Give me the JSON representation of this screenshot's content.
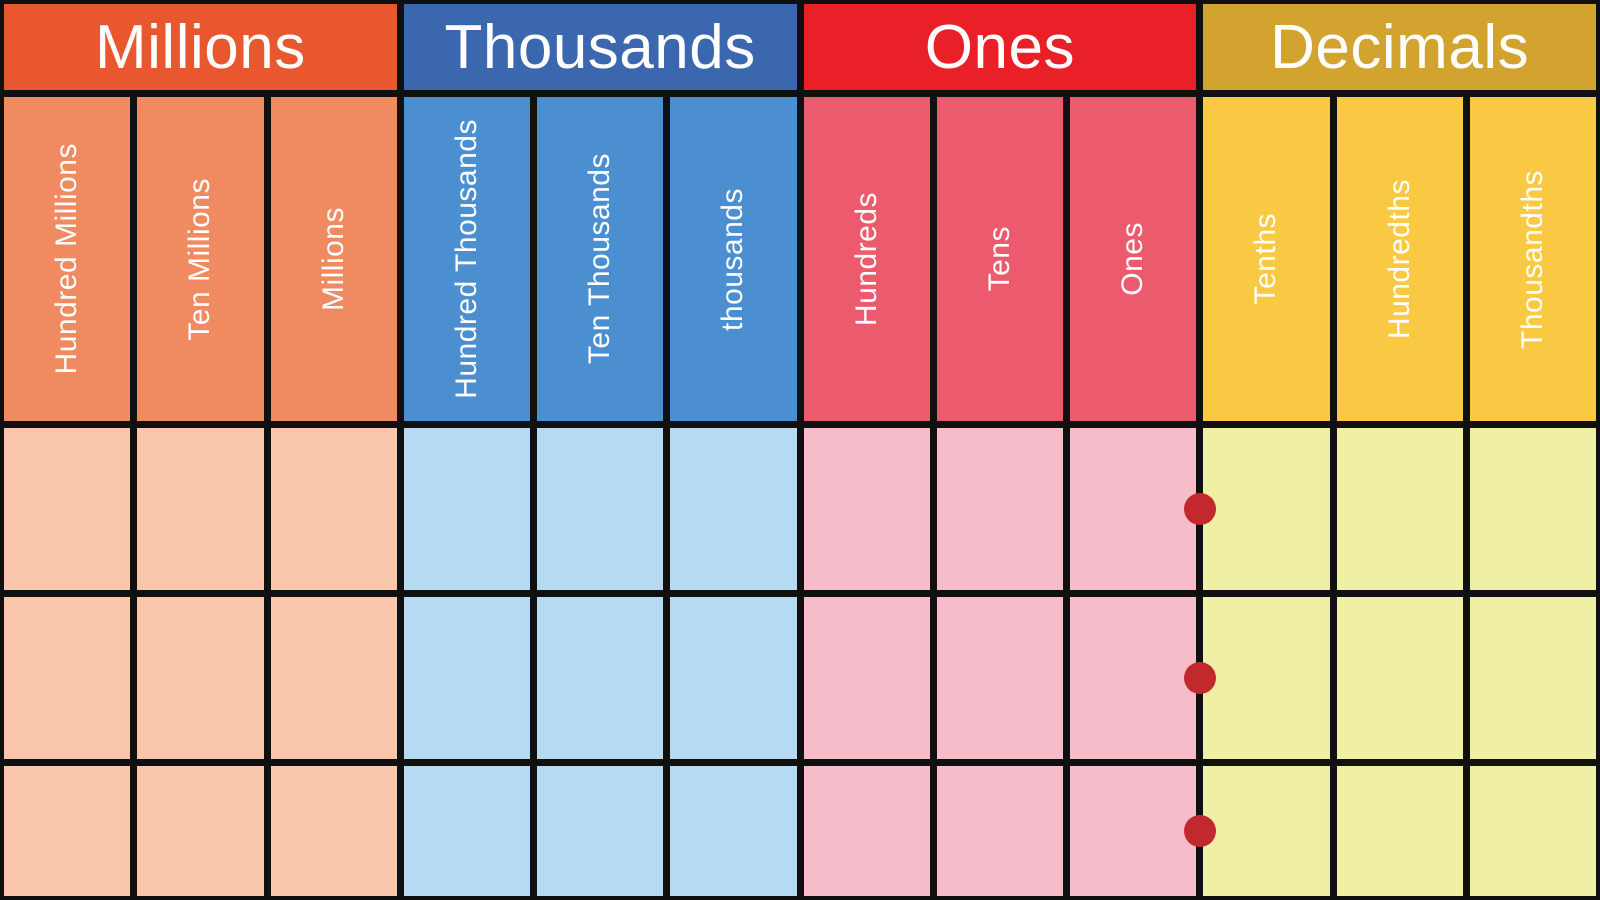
{
  "groups": [
    {
      "label": "Millions",
      "columns": [
        "Hundred Millions",
        "Ten Millions",
        "Millions"
      ]
    },
    {
      "label": "Thousands",
      "columns": [
        "Hundred Thousands",
        "Ten Thousands",
        "thousands"
      ]
    },
    {
      "label": "Ones",
      "columns": [
        "Hundreds",
        "Tens",
        "Ones"
      ]
    },
    {
      "label": "Decimals",
      "columns": [
        "Tenths",
        "Hundredths",
        "Thousandths"
      ]
    }
  ],
  "body": {
    "row_count": 3,
    "columns_per_row": 12,
    "cells_are_blank": true,
    "decimal_point": {
      "icon": "decimal-point-dot",
      "shape": "circle",
      "between_columns": [
        "Ones",
        "Tenths"
      ],
      "rows_with_dot": [
        1,
        2,
        3
      ]
    }
  },
  "colors": {
    "millions_header": "#e8572e",
    "millions_sub": "#f08a61",
    "millions_cell": "#fac7ac",
    "thousands_header": "#3a67ae",
    "thousands_sub": "#4c8fd0",
    "thousands_cell": "#b7daf3",
    "ones_header": "#ea2028",
    "ones_sub": "#eb5a6d",
    "ones_cell": "#f6bcc9",
    "decimals_header": "#d2a32f",
    "decimals_sub": "#f9c944",
    "decimals_cell": "#f0f0a5",
    "grid_line": "#101010",
    "decimal_dot": "#c2292f",
    "text": "#ffffff"
  }
}
